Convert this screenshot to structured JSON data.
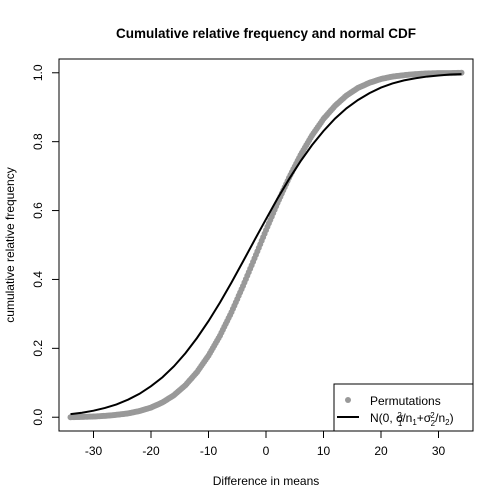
{
  "chart_data": {
    "type": "line",
    "title": "Cumulative relative frequency and normal CDF",
    "xlabel": "Difference in means",
    "ylabel": "cumulative relative frequency",
    "xlim": [
      -36,
      36
    ],
    "ylim": [
      -0.04,
      1.04
    ],
    "xticks": [
      "-30",
      "-20",
      "-10",
      "0",
      "10",
      "20",
      "30"
    ],
    "yticks": [
      "0.0",
      "0.2",
      "0.4",
      "0.6",
      "0.8",
      "1.0"
    ],
    "grid": false,
    "legend_position": "bottom-right",
    "legend": {
      "permutations": "Permutations",
      "normal_prefix": "N(0, σ",
      "sub1": "1",
      "sup1": "2",
      "slash_n": "/n",
      "plus_sigma": "+σ",
      "sub2": "2",
      "sup2": "2",
      "slash_n2": "/n",
      "sub3": "2",
      "close": ")"
    },
    "series": [
      {
        "name": "Permutations",
        "kind": "points",
        "color": "#999999",
        "x": [
          -34,
          -32,
          -30,
          -28,
          -26,
          -24,
          -22,
          -20,
          -18,
          -16,
          -14,
          -12,
          -10,
          -8,
          -6,
          -4,
          -2,
          0,
          2,
          4,
          6,
          8,
          10,
          12,
          14,
          16,
          18,
          20,
          22,
          24,
          26,
          28,
          30,
          32,
          34
        ],
        "y": [
          0.0,
          0.001,
          0.002,
          0.004,
          0.007,
          0.011,
          0.018,
          0.028,
          0.043,
          0.064,
          0.093,
          0.131,
          0.179,
          0.237,
          0.305,
          0.381,
          0.461,
          0.543,
          0.622,
          0.695,
          0.761,
          0.818,
          0.866,
          0.904,
          0.934,
          0.956,
          0.971,
          0.982,
          0.989,
          0.993,
          0.996,
          0.998,
          0.999,
          0.999,
          1.0
        ]
      },
      {
        "name": "N(0, σ1²/n1+σ2²/n2)",
        "kind": "line",
        "color": "#000000",
        "x": [
          -34,
          -32,
          -30,
          -28,
          -26,
          -24,
          -22,
          -20,
          -18,
          -16,
          -14,
          -12,
          -10,
          -8,
          -6,
          -4,
          -2,
          0,
          2,
          4,
          6,
          8,
          10,
          12,
          14,
          16,
          18,
          20,
          22,
          24,
          26,
          28,
          30,
          32,
          34
        ],
        "y": [
          0.009,
          0.013,
          0.019,
          0.027,
          0.037,
          0.051,
          0.068,
          0.09,
          0.116,
          0.148,
          0.186,
          0.23,
          0.279,
          0.333,
          0.391,
          0.452,
          0.514,
          0.575,
          0.635,
          0.691,
          0.743,
          0.79,
          0.831,
          0.867,
          0.897,
          0.921,
          0.941,
          0.957,
          0.969,
          0.978,
          0.984,
          0.989,
          0.992,
          0.995,
          0.996
        ]
      }
    ]
  }
}
